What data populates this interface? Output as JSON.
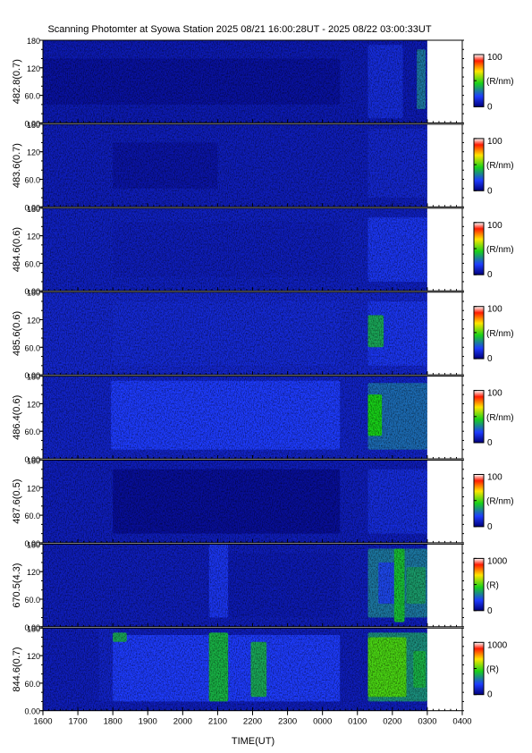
{
  "title": "Scanning Photomter at Syowa Station  2025 08/21 16:00:28UT - 2025 08/22 03:00:33UT",
  "colors": {
    "low": "#00007a",
    "mid_low": "#1e3cff",
    "mid": "#18d218",
    "mid_high": "#ffe600",
    "high": "#ff1a00",
    "max": "#ffffff"
  },
  "chart_data": {
    "type": "heatmap",
    "xlabel": "TIME(UT)",
    "x_ticks": [
      "1600",
      "1700",
      "1800",
      "1900",
      "2000",
      "2100",
      "2200",
      "2300",
      "0000",
      "0100",
      "0200",
      "0300",
      "0400"
    ],
    "x_range": [
      "2025-08-21 16:00",
      "2025-08-22 04:00"
    ],
    "data_range": [
      "2025-08-21 16:00:28",
      "2025-08-22 03:00:33"
    ],
    "y_ticks": [
      "0.00",
      "60.0",
      "120",
      "180"
    ],
    "ylim": [
      0,
      180
    ],
    "colorscale": "rainbow (blue-green-yellow-red-white)",
    "panels": [
      {
        "label": "482.8(0.7)",
        "cb_max": "100",
        "cb_min": "0",
        "unit": "(R/nm)",
        "background": 0.09,
        "features": [
          {
            "x": [
              16.0,
              24.5
            ],
            "y": [
              40,
              140
            ],
            "v": 0.06
          },
          {
            "x": [
              25.3,
              26.3
            ],
            "y": [
              10,
              170
            ],
            "v": 0.15
          },
          {
            "x": [
              26.7,
              26.95
            ],
            "y": [
              30,
              160
            ],
            "v": 0.3
          }
        ]
      },
      {
        "label": "483.6(0.7)",
        "cb_max": "100",
        "cb_min": "0",
        "unit": "(R/nm)",
        "background": 0.1,
        "features": [
          {
            "x": [
              18.0,
              21.0
            ],
            "y": [
              40,
              140
            ],
            "v": 0.07
          },
          {
            "x": [
              25.3,
              27.0
            ],
            "y": [
              20,
              170
            ],
            "v": 0.13
          }
        ]
      },
      {
        "label": "484.6(0.6)",
        "cb_max": "100",
        "cb_min": "0",
        "unit": "(R/nm)",
        "background": 0.11,
        "features": [
          {
            "x": [
              18.0,
              24.5
            ],
            "y": [
              30,
              150
            ],
            "v": 0.1
          },
          {
            "x": [
              25.3,
              27.0
            ],
            "y": [
              20,
              160
            ],
            "v": 0.18
          }
        ]
      },
      {
        "label": "485.6(0.6)",
        "cb_max": "100",
        "cb_min": "0",
        "unit": "(R/nm)",
        "background": 0.13,
        "features": [
          {
            "x": [
              18.0,
              24.5
            ],
            "y": [
              20,
              160
            ],
            "v": 0.14
          },
          {
            "x": [
              25.3,
              27.0
            ],
            "y": [
              20,
              160
            ],
            "v": 0.18
          },
          {
            "x": [
              25.3,
              25.75
            ],
            "y": [
              60,
              130
            ],
            "v": 0.38
          }
        ]
      },
      {
        "label": "486.4(0.6)",
        "cb_max": "100",
        "cb_min": "0",
        "unit": "(R/nm)",
        "background": 0.12,
        "features": [
          {
            "x": [
              17.95,
              24.5
            ],
            "y": [
              20,
              170
            ],
            "v": 0.2
          },
          {
            "x": [
              25.3,
              27.0
            ],
            "y": [
              20,
              165
            ],
            "v": 0.28
          },
          {
            "x": [
              25.3,
              25.7
            ],
            "y": [
              50,
              140
            ],
            "v": 0.45
          }
        ]
      },
      {
        "label": "487.6(0.5)",
        "cb_max": "100",
        "cb_min": "0",
        "unit": "(R/nm)",
        "background": 0.1,
        "features": [
          {
            "x": [
              18.0,
              24.5
            ],
            "y": [
              20,
              160
            ],
            "v": 0.05
          },
          {
            "x": [
              25.3,
              27.0
            ],
            "y": [
              20,
              160
            ],
            "v": 0.15
          }
        ]
      },
      {
        "label": "670.5(4.3)",
        "cb_max": "1000",
        "cb_min": "0",
        "unit": "(R)",
        "background": 0.1,
        "features": [
          {
            "x": [
              20.7,
              24.5
            ],
            "y": [
              20,
              160
            ],
            "v": 0.09
          },
          {
            "x": [
              20.75,
              21.3
            ],
            "y": [
              20,
              180
            ],
            "v": 0.18
          },
          {
            "x": [
              25.3,
              27.0
            ],
            "y": [
              20,
              170
            ],
            "v": 0.3
          },
          {
            "x": [
              25.6,
              26.1
            ],
            "y": [
              50,
              140
            ],
            "v": 0.22
          },
          {
            "x": [
              26.05,
              26.35
            ],
            "y": [
              10,
              170
            ],
            "v": 0.42
          },
          {
            "x": [
              26.4,
              26.95
            ],
            "y": [
              50,
              130
            ],
            "v": 0.36
          }
        ]
      },
      {
        "label": "844.6(0.7)",
        "cb_max": "1000",
        "cb_min": "0",
        "unit": "(R)",
        "background": 0.1,
        "features": [
          {
            "x": [
              17.6,
              18.15
            ],
            "y": [
              20,
              180
            ],
            "v": 0.12
          },
          {
            "x": [
              18.0,
              24.5
            ],
            "y": [
              20,
              165
            ],
            "v": 0.2
          },
          {
            "x": [
              18.0,
              18.4
            ],
            "y": [
              150,
              170
            ],
            "v": 0.38
          },
          {
            "x": [
              20.75,
              21.3
            ],
            "y": [
              20,
              170
            ],
            "v": 0.4
          },
          {
            "x": [
              21.95,
              22.4
            ],
            "y": [
              30,
              150
            ],
            "v": 0.38
          },
          {
            "x": [
              25.3,
              27.0
            ],
            "y": [
              20,
              170
            ],
            "v": 0.34
          },
          {
            "x": [
              25.3,
              26.4
            ],
            "y": [
              30,
              160
            ],
            "v": 0.5
          },
          {
            "x": [
              26.6,
              26.95
            ],
            "y": [
              50,
              130
            ],
            "v": 0.4
          }
        ]
      }
    ]
  }
}
